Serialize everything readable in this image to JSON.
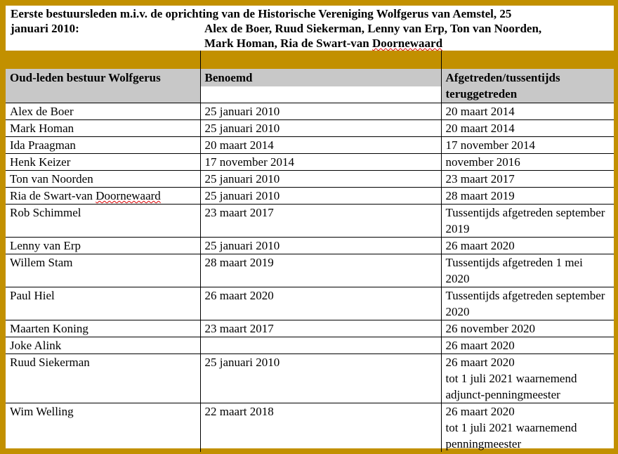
{
  "intro": {
    "line1": "Eerste bestuursleden m.i.v. de oprichting van de Historische Vereniging Wolfgerus van Aemstel, 25",
    "line2": "januari 2010:",
    "names_a": "Alex de Boer, Ruud Siekerman, Lenny van Erp, Ton van Noorden,",
    "names_b": "Mark Homan, Ria de Swart-van ",
    "names_c": "Doornewaard"
  },
  "table": {
    "headers": [
      "Oud-leden bestuur Wolfgerus",
      "Benoemd",
      "Afgetreden/tussentijds teruggetreden"
    ],
    "rows": [
      [
        "Alex de Boer",
        "25 januari 2010",
        "20 maart 2014"
      ],
      [
        "Mark Homan",
        "25 januari 2010",
        "20 maart 2014"
      ],
      [
        "Ida Praagman",
        "20 maart 2014",
        "17 november 2014"
      ],
      [
        "Henk Keizer",
        "17 november 2014",
        "november 2016"
      ],
      [
        "Ton van Noorden",
        "25 januari 2010",
        "23 maart 2017"
      ],
      [
        "Ria de Swart-van Doornewaard",
        "25 januari 2010",
        "28 maart 2019"
      ],
      [
        "Rob Schimmel",
        "23 maart 2017",
        "Tussentijds afgetreden september 2019"
      ],
      [
        "Lenny van Erp",
        "25 januari 2010",
        "26 maart 2020"
      ],
      [
        "Willem Stam",
        "28 maart 2019",
        "Tussentijds afgetreden 1 mei 2020"
      ],
      [
        "Paul Hiel",
        "26 maart 2020",
        "Tussentijds afgetreden september 2020"
      ],
      [
        "Maarten Koning",
        "23 maart 2017",
        "26 november 2020"
      ],
      [
        "Joke Alink",
        "",
        "26 maart 2020"
      ],
      [
        "Ruud Siekerman",
        "25 januari 2010",
        "26 maart 2020\ntot 1 juli 2021 waarnemend adjunct-penningmeester"
      ],
      [
        "Wim Welling",
        "22 maart 2018",
        "26 maart 2020\ntot 1 juli 2021 waarnemend penningmeester"
      ]
    ]
  },
  "colors": {
    "border": "#c29000",
    "header_bg": "#c8c8c8"
  }
}
